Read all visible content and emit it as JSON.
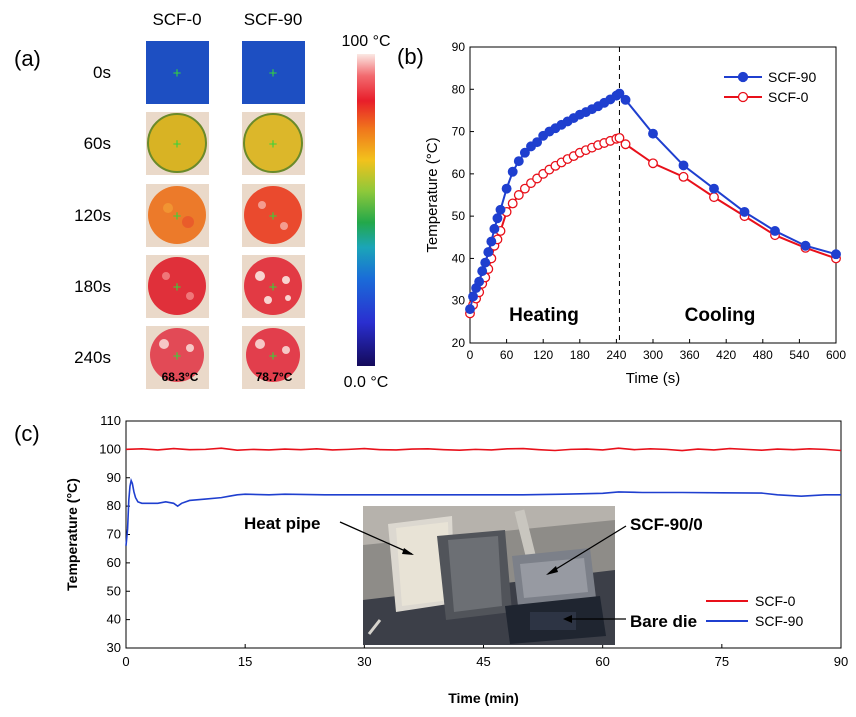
{
  "panel_a": {
    "panel_label": "(a)",
    "columns": [
      "SCF-0",
      "SCF-90"
    ],
    "rows": [
      "0s",
      "60s",
      "120s",
      "180s",
      "240s"
    ],
    "final_temps": [
      "68.3°C",
      "78.7°C"
    ],
    "colorbar": {
      "max_label": "100 °C",
      "min_label": "0.0 °C"
    }
  },
  "panel_b_label": "(b)",
  "panel_c_label": "(c)",
  "photo": {
    "labels": {
      "heat_pipe": "Heat pipe",
      "scf": "SCF-90/0",
      "bare_die": "Bare die"
    }
  },
  "colors": {
    "scf90": "#1f3fcf",
    "scf0": "#e8101a"
  },
  "chart_data": [
    {
      "id": "b",
      "type": "line",
      "xlabel": "Time (s)",
      "ylabel": "Temperature (°C)",
      "xlim": [
        0,
        600
      ],
      "ylim": [
        20,
        90
      ],
      "xticks": [
        0,
        60,
        120,
        180,
        240,
        300,
        360,
        420,
        480,
        540,
        600
      ],
      "yticks": [
        20,
        30,
        40,
        50,
        60,
        70,
        80,
        90
      ],
      "legend_position": "top-right",
      "annotations": [
        "Heating",
        "Cooling"
      ],
      "divider_x": 245,
      "series": [
        {
          "name": "SCF-90",
          "marker": "filled-circle",
          "x": [
            0,
            5,
            10,
            15,
            20,
            25,
            30,
            35,
            40,
            45,
            50,
            60,
            70,
            80,
            90,
            100,
            110,
            120,
            130,
            140,
            150,
            160,
            170,
            180,
            190,
            200,
            210,
            220,
            230,
            240,
            245,
            255,
            300,
            350,
            400,
            450,
            500,
            550,
            600
          ],
          "y": [
            28,
            31,
            33,
            34.5,
            37,
            39,
            41.5,
            44,
            47,
            49.5,
            51.5,
            56.5,
            60.5,
            63,
            65,
            66.5,
            67.5,
            69,
            70,
            70.8,
            71.6,
            72.4,
            73.2,
            74,
            74.6,
            75.3,
            76,
            76.8,
            77.6,
            78.5,
            79,
            77.5,
            69.5,
            62,
            56.5,
            51,
            46.5,
            43,
            41
          ]
        },
        {
          "name": "SCF-0",
          "marker": "open-circle",
          "x": [
            0,
            5,
            10,
            15,
            20,
            25,
            30,
            35,
            40,
            45,
            50,
            60,
            70,
            80,
            90,
            100,
            110,
            120,
            130,
            140,
            150,
            160,
            170,
            180,
            190,
            200,
            210,
            220,
            230,
            240,
            245,
            255,
            300,
            350,
            400,
            450,
            500,
            550,
            600
          ],
          "y": [
            27,
            29,
            30.5,
            32,
            34,
            35.5,
            37.5,
            40,
            43,
            44.5,
            46.5,
            51,
            53,
            55,
            56.5,
            57.8,
            58.9,
            60,
            61,
            61.9,
            62.7,
            63.5,
            64.2,
            65,
            65.6,
            66.2,
            66.8,
            67.3,
            67.8,
            68.3,
            68.5,
            67,
            62.5,
            59.3,
            54.5,
            50,
            45.5,
            42.5,
            40
          ]
        }
      ]
    },
    {
      "id": "c",
      "type": "line",
      "xlabel": "Time (min)",
      "ylabel": "Temperature (°C)",
      "xlim": [
        0,
        90
      ],
      "ylim": [
        30,
        110
      ],
      "xticks": [
        0,
        15,
        30,
        45,
        60,
        75,
        90
      ],
      "yticks": [
        30,
        40,
        50,
        60,
        70,
        80,
        90,
        100,
        110
      ],
      "legend_position": "bottom-right",
      "series": [
        {
          "name": "SCF-0",
          "x": [
            0,
            2,
            4,
            6,
            8,
            10,
            12,
            14,
            16,
            18,
            20,
            22,
            24,
            26,
            28,
            30,
            32,
            34,
            36,
            38,
            40,
            42,
            44,
            46,
            48,
            50,
            52,
            54,
            56,
            58,
            60,
            62,
            64,
            66,
            68,
            70,
            72,
            74,
            76,
            78,
            80,
            82,
            84,
            86,
            88,
            90
          ],
          "y": [
            100,
            100.2,
            99.8,
            100.3,
            99.9,
            100,
            100.4,
            99.7,
            100,
            99.8,
            100.1,
            99.9,
            100.2,
            99.8,
            100,
            100.3,
            99.9,
            99.8,
            100.1,
            100.2,
            99.9,
            99.7,
            100,
            99.8,
            100.2,
            100.3,
            99.9,
            99.6,
            100,
            100.1,
            99.8,
            100.4,
            99.9,
            100.2,
            100,
            99.6,
            100.1,
            99.8,
            100.3,
            100,
            99.7,
            100.1,
            99.9,
            100.2,
            100,
            99.6
          ]
        },
        {
          "name": "SCF-90",
          "x": [
            0,
            0.2,
            0.35,
            0.5,
            0.65,
            0.8,
            1.0,
            1.2,
            1.5,
            2,
            3,
            4,
            5,
            6,
            6.5,
            7,
            8,
            10,
            12,
            13,
            14,
            15,
            18,
            20,
            25,
            30,
            35,
            40,
            45,
            50,
            55,
            60,
            62,
            65,
            70,
            75,
            80,
            82,
            85,
            88,
            90
          ],
          "y": [
            66,
            72,
            82,
            87,
            89,
            88,
            85,
            83,
            81.5,
            81,
            81,
            81,
            81.5,
            81,
            80,
            81,
            82,
            82.5,
            83,
            83.5,
            84,
            84.2,
            84,
            84.2,
            84,
            84,
            84,
            84,
            84,
            84,
            84.2,
            84.5,
            85,
            84.8,
            84.8,
            84.7,
            84.6,
            84,
            83.5,
            84,
            84
          ]
        }
      ]
    }
  ]
}
